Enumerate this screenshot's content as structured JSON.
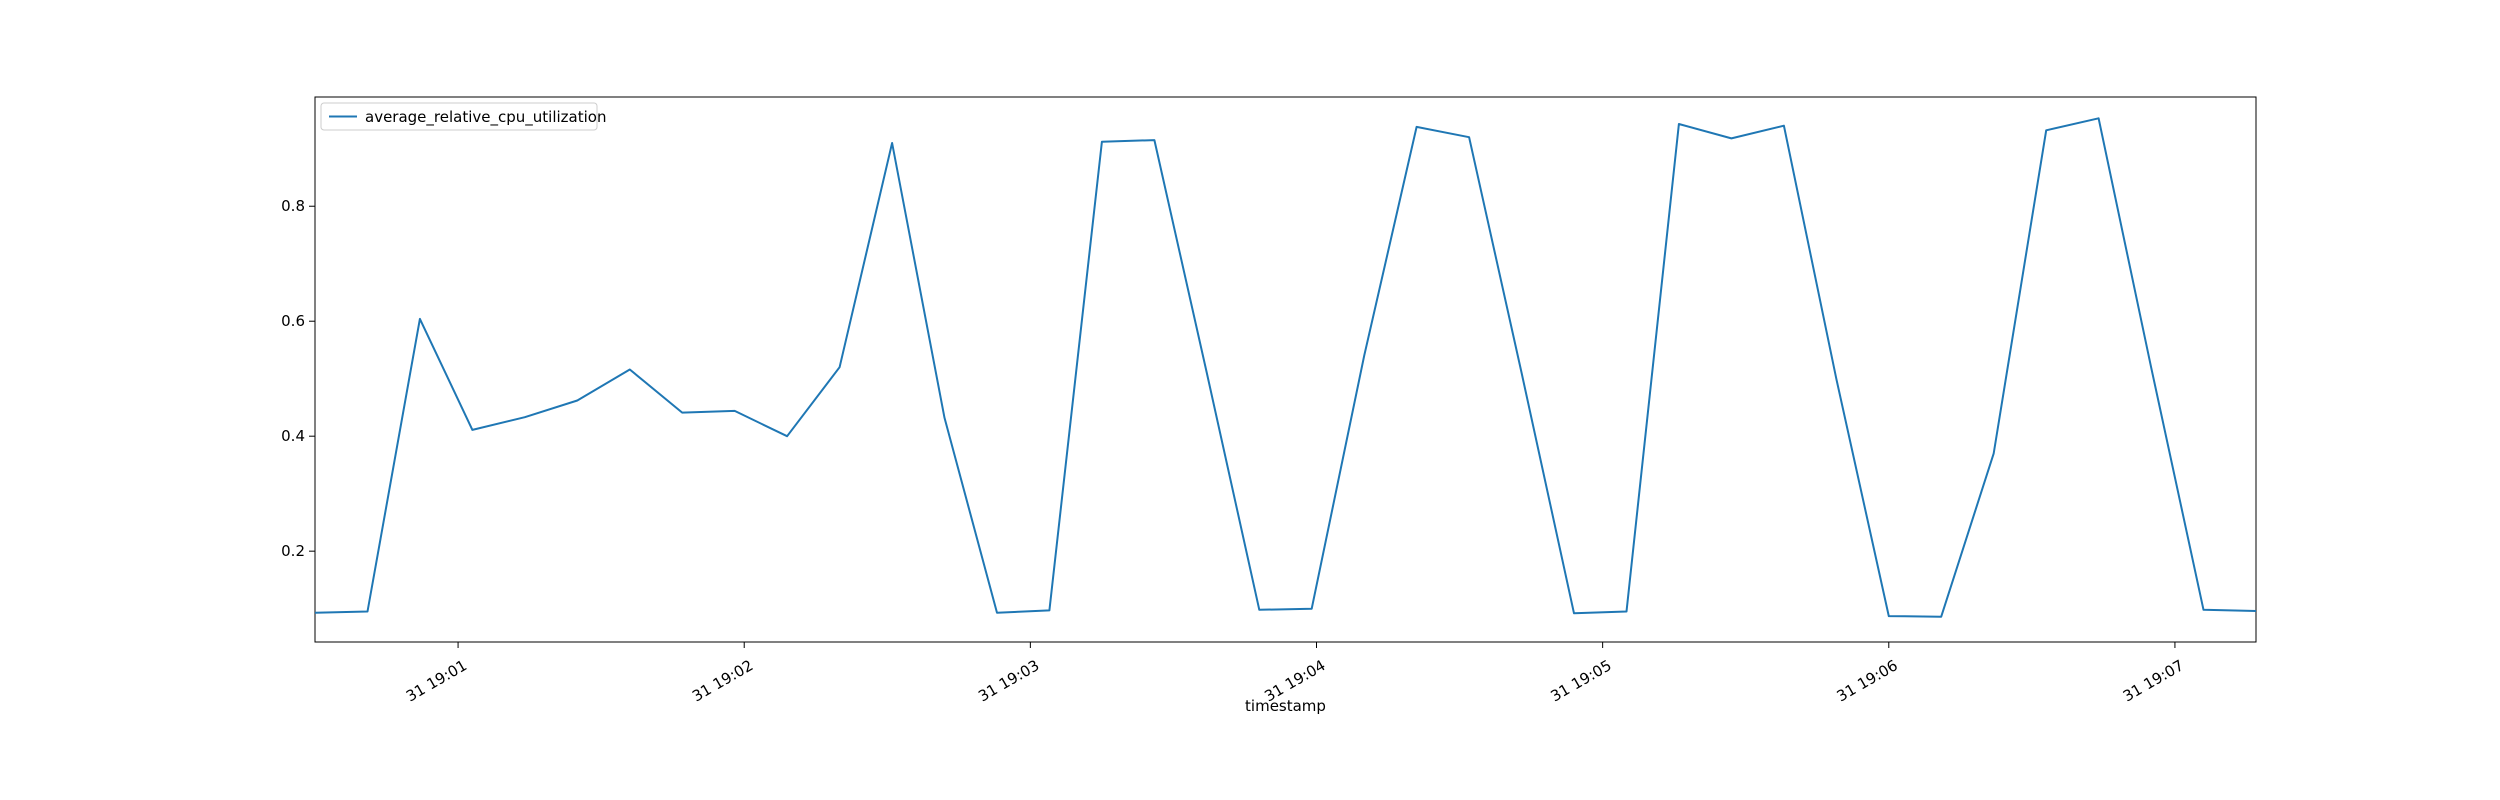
{
  "chart_data": {
    "type": "line",
    "title": "",
    "xlabel": "timestamp",
    "ylabel": "",
    "x_unit": "timestamp",
    "x": [
      "31 19:00:30",
      "31 19:00:41",
      "31 19:00:52",
      "31 19:01:03",
      "31 19:01:14",
      "31 19:01:25",
      "31 19:01:36",
      "31 19:01:47",
      "31 19:01:58",
      "31 19:02:09",
      "31 19:02:20",
      "31 19:02:31",
      "31 19:02:42",
      "31 19:02:53",
      "31 19:03:04",
      "31 19:03:15",
      "31 19:03:26",
      "31 19:03:37",
      "31 19:03:48",
      "31 19:03:59",
      "31 19:04:10",
      "31 19:04:21",
      "31 19:04:32",
      "31 19:04:43",
      "31 19:04:54",
      "31 19:05:05",
      "31 19:05:16",
      "31 19:05:27",
      "31 19:05:38",
      "31 19:05:49",
      "31 19:06:00",
      "31 19:06:11",
      "31 19:06:22",
      "31 19:06:33",
      "31 19:06:44",
      "31 19:06:55",
      "31 19:07:06",
      "31 19:07:17"
    ],
    "series": [
      {
        "name": "average_relative_cpu_utilization",
        "color": "#1f77b4",
        "values": [
          0.093,
          0.095,
          0.604,
          0.411,
          0.433,
          0.462,
          0.516,
          0.441,
          0.444,
          0.4,
          0.52,
          0.91,
          0.432,
          0.093,
          0.097,
          0.912,
          0.915,
          0.51,
          0.098,
          0.1,
          0.54,
          0.938,
          0.92,
          0.51,
          0.092,
          0.095,
          0.943,
          0.918,
          0.94,
          0.5,
          0.087,
          0.086,
          0.37,
          0.932,
          0.953,
          0.52,
          0.098,
          0.096
        ]
      }
    ],
    "xlim": [
      "31 19:00:30",
      "31 19:07:17"
    ],
    "ylim": [
      0.042,
      0.99
    ],
    "x_ticks": [
      "31 19:01",
      "31 19:02",
      "31 19:03",
      "31 19:04",
      "31 19:05",
      "31 19:06",
      "31 19:07"
    ],
    "y_ticks": [
      "0.2",
      "0.4",
      "0.6",
      "0.8"
    ],
    "grid": false,
    "legend": "upper left"
  }
}
